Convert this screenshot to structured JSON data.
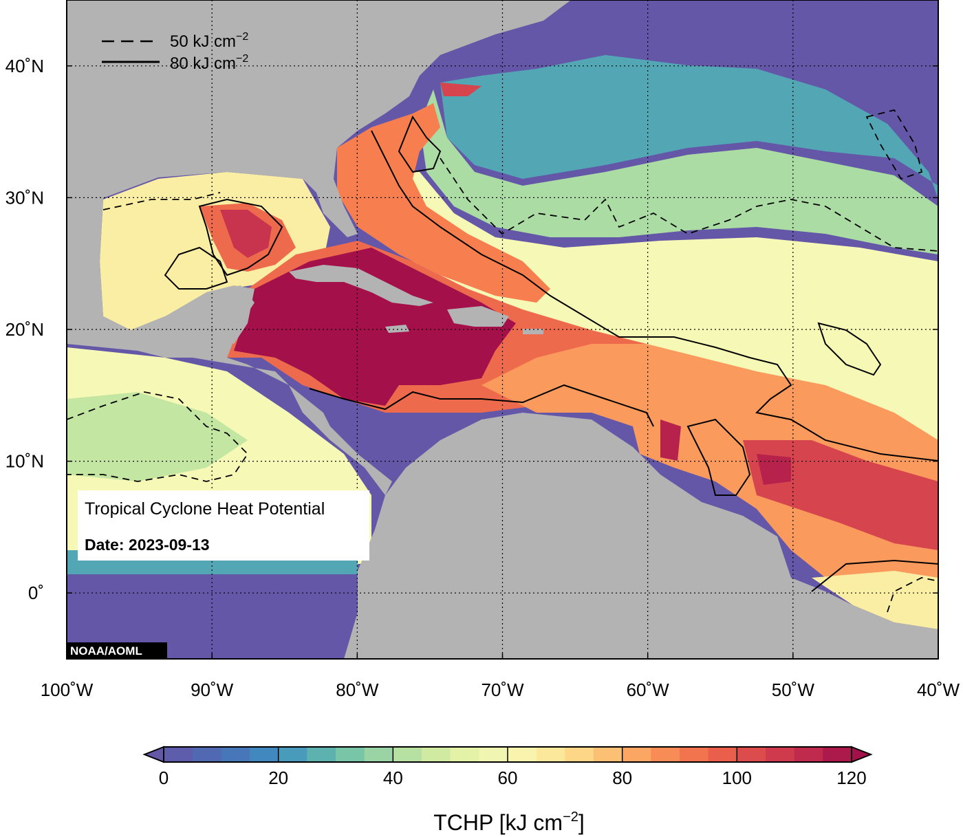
{
  "chart_data": {
    "type": "heatmap",
    "title": "Tropical Cyclone Heat Potential",
    "date_label": "Date:",
    "date_value": "2023-09-13",
    "credit": "NOAA/AOML",
    "x_range": [
      -100,
      -40
    ],
    "y_range": [
      -5,
      45
    ],
    "x_ticks": [
      {
        "value": -100,
        "label": "100˚W"
      },
      {
        "value": -90,
        "label": "90˚W"
      },
      {
        "value": -80,
        "label": "80˚W"
      },
      {
        "value": -70,
        "label": "70˚W"
      },
      {
        "value": -60,
        "label": "60˚W"
      },
      {
        "value": -50,
        "label": "50˚W"
      },
      {
        "value": -40,
        "label": "40˚W"
      }
    ],
    "y_ticks": [
      {
        "value": 0,
        "label": "0˚"
      },
      {
        "value": 10,
        "label": "10˚N"
      },
      {
        "value": 20,
        "label": "20˚N"
      },
      {
        "value": 30,
        "label": "30˚N"
      },
      {
        "value": 40,
        "label": "40˚N"
      }
    ],
    "grid": true,
    "contour_legend": [
      {
        "style": "dashed",
        "value": "50",
        "unit": "kJ cm",
        "exp": "−2"
      },
      {
        "style": "solid",
        "value": "80",
        "unit": "kJ cm",
        "exp": "−2"
      }
    ],
    "colorbar": {
      "title_main": "TCHP [kJ cm",
      "title_exp": "−2",
      "title_end": "]",
      "min": 0,
      "max": 120,
      "step": 5,
      "ticks": [
        0,
        20,
        40,
        60,
        80,
        100,
        120
      ],
      "stops": [
        {
          "v": 0,
          "color": "#6457a8"
        },
        {
          "v": 10,
          "color": "#4a6fb5"
        },
        {
          "v": 20,
          "color": "#3d90c0"
        },
        {
          "v": 30,
          "color": "#68bda9"
        },
        {
          "v": 40,
          "color": "#aadca4"
        },
        {
          "v": 50,
          "color": "#dcf0a0"
        },
        {
          "v": 60,
          "color": "#f6f8b6"
        },
        {
          "v": 70,
          "color": "#fde291"
        },
        {
          "v": 80,
          "color": "#fcb46a"
        },
        {
          "v": 90,
          "color": "#f77f4f"
        },
        {
          "v": 100,
          "color": "#e4544b"
        },
        {
          "v": 110,
          "color": "#c8334e"
        },
        {
          "v": 120,
          "color": "#a3104a"
        }
      ],
      "extend": "both"
    },
    "land_color": "#b3b3b3",
    "grid_line_color": "#000000"
  }
}
